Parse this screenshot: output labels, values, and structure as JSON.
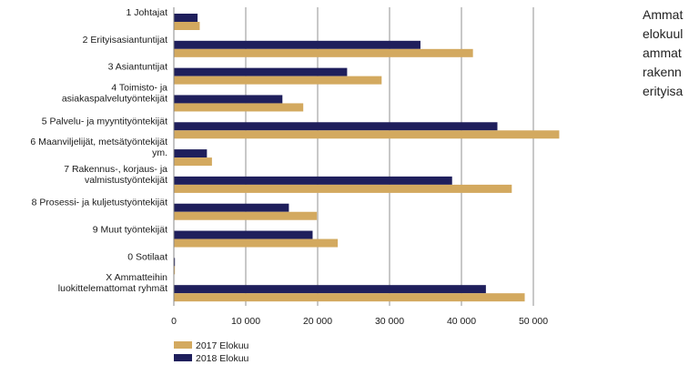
{
  "chart_data": {
    "type": "bar",
    "orientation": "horizontal",
    "categories": [
      [
        "1 Johtajat"
      ],
      [
        "2 Erityisasiantuntijat"
      ],
      [
        "3 Asiantuntijat"
      ],
      [
        "4 Toimisto- ja",
        "asiakaspalvelutyöntekijät"
      ],
      [
        "5 Palvelu- ja myyntityöntekijät"
      ],
      [
        "6 Maanviljelijät, metsätyöntekijät",
        "ym."
      ],
      [
        "7 Rakennus-, korjaus- ja",
        "valmistustyöntekijät"
      ],
      [
        "8 Prosessi- ja kuljetustyöntekijät"
      ],
      [
        "9 Muut työntekijät"
      ],
      [
        "0 Sotilaat"
      ],
      [
        "X Ammatteihin",
        "luokittelemattomat ryhmät"
      ]
    ],
    "series": [
      {
        "name": "2018 Elokuu",
        "color": "#1f1f5c",
        "values": [
          3300,
          34300,
          24100,
          15100,
          45000,
          4600,
          38700,
          16000,
          19300,
          150,
          43400
        ]
      },
      {
        "name": "2017 Elokuu",
        "color": "#d3a95f",
        "values": [
          3600,
          41600,
          28900,
          18000,
          53600,
          5300,
          47000,
          19900,
          22800,
          150,
          48800
        ]
      }
    ],
    "xlim": [
      0,
      54000
    ],
    "xticks": [
      0,
      10000,
      20000,
      30000,
      40000,
      50000
    ],
    "xtick_labels": [
      "0",
      "10 000",
      "20 000",
      "30 000",
      "40 000",
      "50 000"
    ],
    "grid": "vertical",
    "legend": [
      {
        "label": "2017 Elokuu",
        "color": "#d3a95f"
      },
      {
        "label": "2018 Elokuu",
        "color": "#1f1f5c"
      }
    ],
    "legend_position": "bottom-left"
  },
  "side_text": {
    "lines": [
      "Ammat",
      "elokuul",
      "ammat",
      "rakenn",
      "erityisa"
    ]
  }
}
